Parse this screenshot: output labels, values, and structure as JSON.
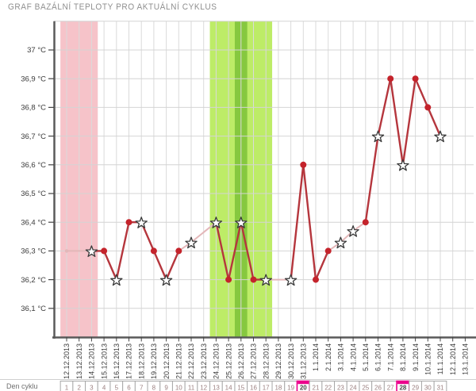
{
  "page": {
    "title": "GRAF BAZÁLNÍ TEPLOTY PRO AKTUÁLNÍ CYKLUS"
  },
  "chart_data": {
    "type": "line",
    "title": "GRAF BAZÁLNÍ TEPLOTY PRO AKTUÁLNÍ CYKLUS",
    "y_unit": "°C",
    "ylim": [
      36.0,
      37.1
    ],
    "grid": true,
    "y_ticks": [
      {
        "v": 37.0,
        "label": "37 °C"
      },
      {
        "v": 36.9,
        "label": "36,9 °C"
      },
      {
        "v": 36.8,
        "label": "36,8 °C"
      },
      {
        "v": 36.7,
        "label": "36,7 °C"
      },
      {
        "v": 36.6,
        "label": "36,6 °C"
      },
      {
        "v": 36.5,
        "label": "36,5 °C"
      },
      {
        "v": 36.4,
        "label": "36,4 °C"
      },
      {
        "v": 36.3,
        "label": "36,3 °C"
      },
      {
        "v": 36.2,
        "label": "36,2 °C"
      },
      {
        "v": 36.1,
        "label": "36,1 °C"
      }
    ],
    "dates": [
      "12.12.2013",
      "13.12.2013",
      "14.12.2013",
      "15.12.2013",
      "16.12.2013",
      "17.12.2013",
      "18.12.2013",
      "19.12.2013",
      "20.12.2013",
      "21.12.2013",
      "22.12.2013",
      "23.12.2013",
      "24.12.2013",
      "25.12.2013",
      "26.12.2013",
      "27.12.2013",
      "28.12.2013",
      "29.12.2013",
      "30.12.2013",
      "31.12.2013",
      "1.1.2014",
      "2.1.2014",
      "3.1.2014",
      "4.1.2014",
      "5.1.2014",
      "6.1.2014",
      "7.1.2014",
      "8.1.2014",
      "9.1.2014",
      "10.1.2014",
      "11.1.2014",
      "12.1.2014",
      "13.1.2014"
    ],
    "bands": [
      {
        "name": "menstruation",
        "color": "#f6c3c9",
        "from_index": 0,
        "to_index": 2
      },
      {
        "name": "fertile-window",
        "color": "#bdec67",
        "from_index": 12,
        "to_index": 16
      },
      {
        "name": "ovulation",
        "color": "#86c83f",
        "from_index": 14,
        "to_index": 14
      }
    ],
    "points": [
      {
        "date": "12.12.2013",
        "value": 36.3,
        "marker": "smalldot",
        "connector": null
      },
      {
        "date": "14.12.2013",
        "value": 36.3,
        "marker": "star",
        "connector": "faint"
      },
      {
        "date": "15.12.2013",
        "value": 36.3,
        "marker": "dot",
        "connector": "solid"
      },
      {
        "date": "16.12.2013",
        "value": 36.2,
        "marker": "star",
        "connector": "solid"
      },
      {
        "date": "17.12.2013",
        "value": 36.4,
        "marker": "dot",
        "connector": "solid"
      },
      {
        "date": "18.12.2013",
        "value": 36.4,
        "marker": "star",
        "connector": "solid"
      },
      {
        "date": "19.12.2013",
        "value": 36.3,
        "marker": "dot",
        "connector": "solid"
      },
      {
        "date": "20.12.2013",
        "value": 36.2,
        "marker": "star",
        "connector": "solid"
      },
      {
        "date": "21.12.2013",
        "value": 36.3,
        "marker": "dot",
        "connector": "solid"
      },
      {
        "date": "22.12.2013",
        "value": 36.33,
        "marker": "star",
        "connector": "faint"
      },
      {
        "date": "24.12.2013",
        "value": 36.4,
        "marker": "star",
        "connector": "faint"
      },
      {
        "date": "25.12.2013",
        "value": 36.2,
        "marker": "dot",
        "connector": "solid"
      },
      {
        "date": "26.12.2013",
        "value": 36.4,
        "marker": "star",
        "connector": "solid"
      },
      {
        "date": "27.12.2013",
        "value": 36.2,
        "marker": "dot",
        "connector": "solid"
      },
      {
        "date": "28.12.2013",
        "value": 36.2,
        "marker": "star",
        "connector": "solid"
      },
      {
        "date": "30.12.2013",
        "value": 36.2,
        "marker": "star",
        "connector": "faint"
      },
      {
        "date": "31.12.2013",
        "value": 36.6,
        "marker": "dot",
        "connector": "solid"
      },
      {
        "date": "1.1.2014",
        "value": 36.2,
        "marker": "dot",
        "connector": "solid"
      },
      {
        "date": "2.1.2014",
        "value": 36.3,
        "marker": "dot",
        "connector": "solid"
      },
      {
        "date": "3.1.2014",
        "value": 36.33,
        "marker": "star",
        "connector": "faint"
      },
      {
        "date": "4.1.2014",
        "value": 36.37,
        "marker": "star",
        "connector": "faint"
      },
      {
        "date": "5.1.2014",
        "value": 36.4,
        "marker": "dot",
        "connector": "faint"
      },
      {
        "date": "6.1.2014",
        "value": 36.7,
        "marker": "star",
        "connector": "solid"
      },
      {
        "date": "7.1.2014",
        "value": 36.9,
        "marker": "dot",
        "connector": "solid"
      },
      {
        "date": "8.1.2014",
        "value": 36.6,
        "marker": "star",
        "connector": "solid"
      },
      {
        "date": "9.1.2014",
        "value": 36.9,
        "marker": "dot",
        "connector": "solid"
      },
      {
        "date": "10.1.2014",
        "value": 36.8,
        "marker": "dot",
        "connector": "solid"
      },
      {
        "date": "11.1.2014",
        "value": 36.7,
        "marker": "star",
        "connector": "solid"
      }
    ],
    "cycle_days": {
      "label": "Den cyklu",
      "numbers": [
        1,
        2,
        3,
        4,
        5,
        6,
        7,
        8,
        9,
        10,
        11,
        12,
        13,
        14,
        15,
        16,
        17,
        18,
        19,
        20,
        21,
        22,
        23,
        24,
        25,
        26,
        27,
        28,
        29,
        30,
        31
      ],
      "highlighted": [
        20,
        28
      ]
    },
    "colors": {
      "line_solid": "#b5363d",
      "line_faint": "#e3b7b9",
      "dot_fill": "#c4232b",
      "star_stroke": "#3a3a3a",
      "star_fill": "#ffffff",
      "axis": "#5a5a5a",
      "grid_v": "#dadada",
      "grid_h": "#d4d4d4",
      "highlight": "#ec008c",
      "band_pink": "#f6c3c9",
      "band_green_light": "#bdec67",
      "band_green_dark": "#86c83f"
    },
    "legend_position": "none"
  }
}
